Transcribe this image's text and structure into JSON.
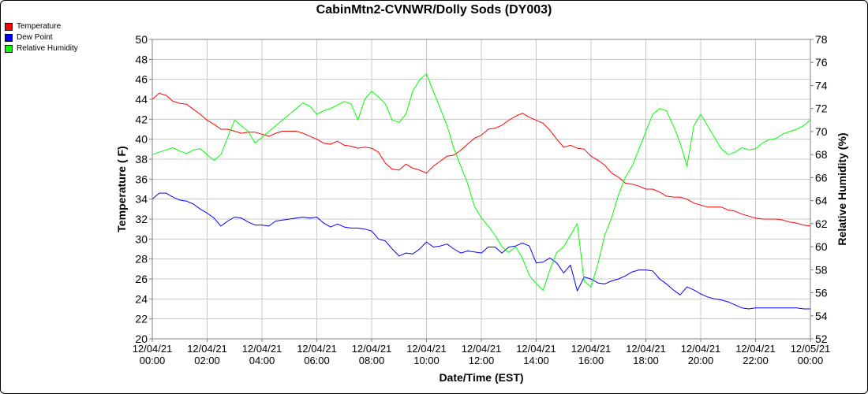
{
  "chart_data": {
    "type": "line",
    "title": "CabinMtn2-CVNWR/Dolly Sods (DY003)",
    "xlabel": "Date/Time (EST)",
    "ylabel_left": "Temperature ( F)",
    "ylabel_right": "Relative Humidity (%)",
    "x_ticks": [
      [
        "12/04/21",
        "00:00"
      ],
      [
        "12/04/21",
        "02:00"
      ],
      [
        "12/04/21",
        "04:00"
      ],
      [
        "12/04/21",
        "06:00"
      ],
      [
        "12/04/21",
        "08:00"
      ],
      [
        "12/04/21",
        "10:00"
      ],
      [
        "12/04/21",
        "12:00"
      ],
      [
        "12/04/21",
        "14:00"
      ],
      [
        "12/04/21",
        "16:00"
      ],
      [
        "12/04/21",
        "18:00"
      ],
      [
        "12/04/21",
        "20:00"
      ],
      [
        "12/04/21",
        "22:00"
      ],
      [
        "12/05/21",
        "00:00"
      ]
    ],
    "x_range_hours": [
      0,
      24
    ],
    "ylim_left": [
      20,
      50
    ],
    "yticks_left": [
      20,
      22,
      24,
      26,
      28,
      30,
      32,
      34,
      36,
      38,
      40,
      42,
      44,
      46,
      48,
      50
    ],
    "ylim_right": [
      52,
      78
    ],
    "yticks_right": [
      52,
      54,
      56,
      58,
      60,
      62,
      64,
      66,
      68,
      70,
      72,
      74,
      76,
      78
    ],
    "grid": true,
    "legend_position": "top-left",
    "series": [
      {
        "name": "Temperature",
        "color": "#ff0000",
        "axis": "left",
        "x": [
          0,
          0.25,
          0.5,
          0.75,
          1,
          1.25,
          1.5,
          1.75,
          2,
          2.25,
          2.5,
          2.75,
          3,
          3.25,
          3.5,
          3.75,
          4,
          4.25,
          4.5,
          4.75,
          5,
          5.25,
          5.5,
          5.75,
          6,
          6.25,
          6.5,
          6.75,
          7,
          7.25,
          7.5,
          7.75,
          8,
          8.25,
          8.5,
          8.75,
          9,
          9.25,
          9.5,
          9.75,
          10,
          10.25,
          10.5,
          10.75,
          11,
          11.25,
          11.5,
          11.75,
          12,
          12.25,
          12.5,
          12.75,
          13,
          13.25,
          13.5,
          13.75,
          14,
          14.25,
          14.5,
          14.75,
          15,
          15.25,
          15.5,
          15.75,
          16,
          16.25,
          16.5,
          16.75,
          17,
          17.25,
          17.5,
          17.75,
          18,
          18.25,
          18.5,
          18.75,
          19,
          19.25,
          19.5,
          19.75,
          20,
          20.25,
          20.5,
          20.75,
          21,
          21.25,
          21.5,
          21.75,
          22,
          22.25,
          22.5,
          22.75,
          23,
          23.25,
          23.5,
          23.75,
          24
        ],
        "values": [
          44.0,
          44.6,
          44.4,
          43.8,
          43.6,
          43.5,
          43.0,
          42.5,
          41.9,
          41.5,
          41.0,
          41.0,
          40.8,
          40.6,
          40.7,
          40.7,
          40.5,
          40.3,
          40.6,
          40.8,
          40.8,
          40.8,
          40.6,
          40.3,
          40.0,
          39.6,
          39.5,
          39.8,
          39.4,
          39.3,
          39.1,
          39.2,
          39.1,
          38.7,
          37.6,
          37.0,
          36.9,
          37.5,
          37.1,
          36.9,
          36.6,
          37.3,
          37.8,
          38.3,
          38.4,
          38.9,
          39.5,
          40.1,
          40.4,
          41.0,
          41.1,
          41.4,
          41.9,
          42.3,
          42.6,
          42.2,
          41.9,
          41.6,
          40.9,
          40.0,
          39.2,
          39.4,
          39.1,
          39.0,
          38.3,
          37.9,
          37.4,
          36.6,
          36.2,
          35.6,
          35.5,
          35.3,
          35.0,
          35.0,
          34.7,
          34.3,
          34.2,
          34.2,
          34.0,
          33.6,
          33.4,
          33.2,
          33.2,
          33.2,
          32.9,
          32.8,
          32.5,
          32.3,
          32.1,
          32.0,
          32.0,
          32.0,
          31.9,
          31.7,
          31.6,
          31.4,
          31.3
        ]
      },
      {
        "name": "Dew Point",
        "color": "#0000ff",
        "axis": "left",
        "x": [
          0,
          0.25,
          0.5,
          0.75,
          1,
          1.25,
          1.5,
          1.75,
          2,
          2.25,
          2.5,
          2.75,
          3,
          3.25,
          3.5,
          3.75,
          4,
          4.25,
          4.5,
          4.75,
          5,
          5.25,
          5.5,
          5.75,
          6,
          6.25,
          6.5,
          6.75,
          7,
          7.25,
          7.5,
          7.75,
          8,
          8.25,
          8.5,
          8.75,
          9,
          9.25,
          9.5,
          9.75,
          10,
          10.25,
          10.5,
          10.75,
          11,
          11.25,
          11.5,
          11.75,
          12,
          12.25,
          12.5,
          12.75,
          13,
          13.25,
          13.5,
          13.75,
          14,
          14.25,
          14.5,
          14.75,
          15,
          15.25,
          15.5,
          15.75,
          16,
          16.25,
          16.5,
          16.75,
          17,
          17.25,
          17.5,
          17.75,
          18,
          18.25,
          18.5,
          18.75,
          19,
          19.25,
          19.5,
          19.75,
          20,
          20.25,
          20.5,
          20.75,
          21,
          21.25,
          21.5,
          21.75,
          22,
          22.25,
          22.5,
          22.75,
          23,
          23.25,
          23.5,
          23.75,
          24
        ],
        "values": [
          34.0,
          34.6,
          34.6,
          34.2,
          33.9,
          33.8,
          33.5,
          33.0,
          32.6,
          32.1,
          31.3,
          31.8,
          32.2,
          32.1,
          31.7,
          31.4,
          31.4,
          31.3,
          31.8,
          31.9,
          32.0,
          32.1,
          32.2,
          32.1,
          32.2,
          31.6,
          31.2,
          31.5,
          31.2,
          31.1,
          31.1,
          31.0,
          30.8,
          30.0,
          29.8,
          29.0,
          28.3,
          28.6,
          28.5,
          29.0,
          29.7,
          29.2,
          29.3,
          29.5,
          29.0,
          28.6,
          28.8,
          28.7,
          28.6,
          29.2,
          29.2,
          28.6,
          29.2,
          29.3,
          29.6,
          29.3,
          27.6,
          27.7,
          28.1,
          27.6,
          26.6,
          27.4,
          24.8,
          26.2,
          26.0,
          25.6,
          25.5,
          25.8,
          26.0,
          26.3,
          26.7,
          26.9,
          26.9,
          26.8,
          26.0,
          25.5,
          24.9,
          24.4,
          25.2,
          24.9,
          24.5,
          24.2,
          24.0,
          23.9,
          23.7,
          23.4,
          23.1,
          23.0,
          23.1,
          23.1,
          23.1,
          23.1,
          23.1,
          23.1,
          23.1,
          23.0,
          23.0
        ]
      },
      {
        "name": "Relative Humidity",
        "color": "#00ff00",
        "axis": "right",
        "x": [
          0,
          0.25,
          0.5,
          0.75,
          1,
          1.25,
          1.5,
          1.75,
          2,
          2.25,
          2.5,
          2.75,
          3,
          3.25,
          3.5,
          3.75,
          4,
          4.25,
          4.5,
          4.75,
          5,
          5.25,
          5.5,
          5.75,
          6,
          6.25,
          6.5,
          6.75,
          7,
          7.25,
          7.5,
          7.75,
          8,
          8.25,
          8.5,
          8.75,
          9,
          9.25,
          9.5,
          9.75,
          10,
          10.25,
          10.5,
          10.75,
          11,
          11.25,
          11.5,
          11.75,
          12,
          12.25,
          12.5,
          12.75,
          13,
          13.25,
          13.5,
          13.75,
          14,
          14.25,
          14.5,
          14.75,
          15,
          15.25,
          15.5,
          15.75,
          16,
          16.25,
          16.5,
          16.75,
          17,
          17.25,
          17.5,
          17.75,
          18,
          18.25,
          18.5,
          18.75,
          19,
          19.25,
          19.5,
          19.75,
          20,
          20.25,
          20.5,
          20.75,
          21,
          21.25,
          21.5,
          21.75,
          22,
          22.25,
          22.5,
          22.75,
          23,
          23.25,
          23.5,
          23.75,
          24
        ],
        "values": [
          68.0,
          68.2,
          68.4,
          68.6,
          68.3,
          68.1,
          68.4,
          68.5,
          68.0,
          67.5,
          68.0,
          69.5,
          71.0,
          70.5,
          70.0,
          69.0,
          69.5,
          70.0,
          70.5,
          71.0,
          71.5,
          72.0,
          72.5,
          72.2,
          71.5,
          71.8,
          72.0,
          72.3,
          72.6,
          72.4,
          71.0,
          72.8,
          73.5,
          73.0,
          72.4,
          71.0,
          70.8,
          71.5,
          73.5,
          74.5,
          75.0,
          73.5,
          72.0,
          70.5,
          68.5,
          67.0,
          65.5,
          63.5,
          62.5,
          61.8,
          61.0,
          60.0,
          59.5,
          60.0,
          59.0,
          57.5,
          56.8,
          56.2,
          58.0,
          59.5,
          60.0,
          61.0,
          62.0,
          57.0,
          56.5,
          58.5,
          61.0,
          62.5,
          64.5,
          66.0,
          67.0,
          68.5,
          70.0,
          71.5,
          72.0,
          71.8,
          70.5,
          69.0,
          67.0,
          70.5,
          71.5,
          70.5,
          69.5,
          68.5,
          68.0,
          68.2,
          68.6,
          68.4,
          68.5,
          69.0,
          69.3,
          69.4,
          69.8,
          70.0,
          70.2,
          70.5,
          71.0
        ]
      }
    ]
  }
}
